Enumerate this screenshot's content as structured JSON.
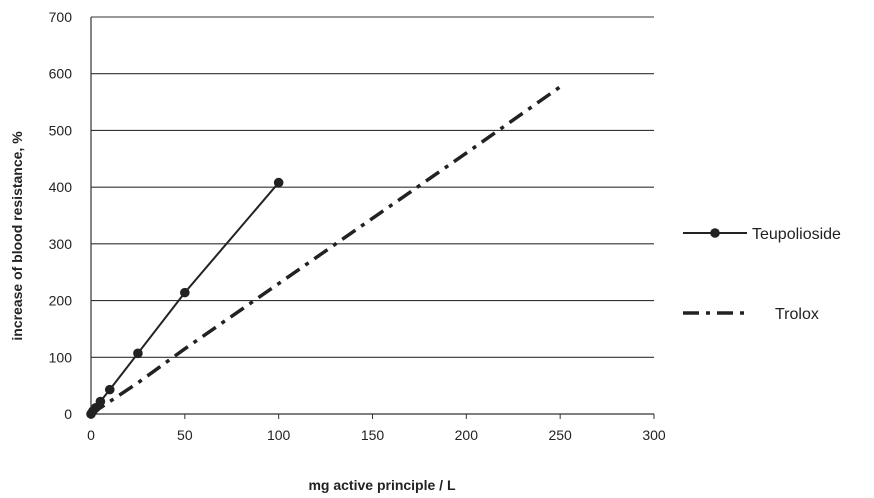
{
  "chart_data": {
    "type": "line",
    "title": "",
    "xlabel": "mg active principle / L",
    "ylabel": "increase of blood resistance, %",
    "xlim": [
      0,
      300
    ],
    "ylim": [
      0,
      700
    ],
    "xticks": [
      0,
      50,
      100,
      150,
      200,
      250,
      300
    ],
    "yticks": [
      0,
      100,
      200,
      300,
      400,
      500,
      600,
      700
    ],
    "grid": "horizontal",
    "legend_position": "right",
    "series": [
      {
        "name": "Teupolioside",
        "style": "solid-with-markers",
        "color": "#222222",
        "x": [
          0,
          1,
          2.5,
          5,
          10,
          25,
          50,
          100
        ],
        "y": [
          0,
          5,
          11,
          22,
          43,
          107,
          214,
          408
        ]
      },
      {
        "name": "Trolox",
        "style": "dash-dot",
        "color": "#222222",
        "x": [
          0,
          10,
          25,
          50,
          100,
          150,
          200,
          250
        ],
        "y": [
          0,
          22,
          55,
          115,
          230,
          345,
          460,
          577
        ]
      }
    ]
  }
}
